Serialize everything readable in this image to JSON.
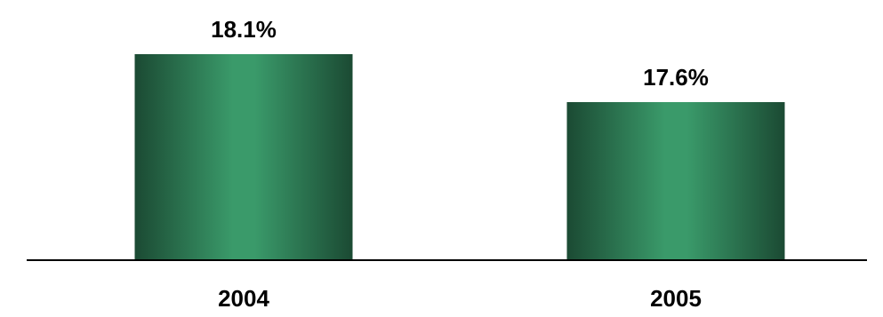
{
  "chart_data": {
    "type": "bar",
    "categories": [
      "2004",
      "2005"
    ],
    "values": [
      18.1,
      17.6
    ],
    "value_labels": [
      "18.1%",
      "17.6%"
    ],
    "title": "",
    "xlabel": "",
    "ylabel": "",
    "grid": false,
    "legend": "none"
  },
  "colors": {
    "bar_dark": "#1b4a33",
    "bar_light": "#3a9a6a",
    "axis": "#000000",
    "text": "#000000"
  }
}
